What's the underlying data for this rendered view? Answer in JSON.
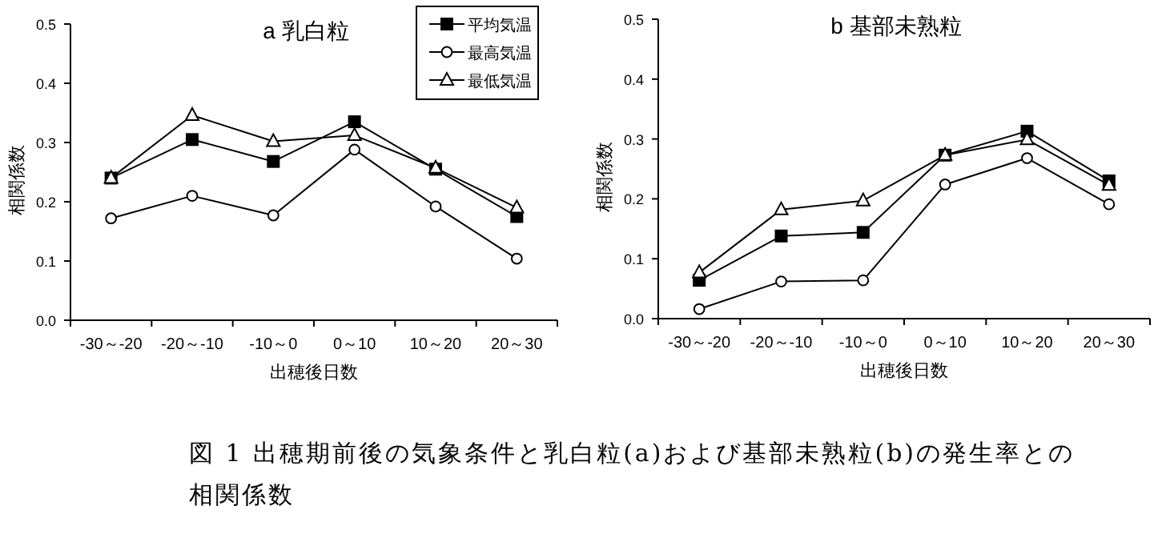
{
  "chart_data": [
    {
      "type": "line",
      "title": "a 乳白粒",
      "xlabel": "出穂後日数",
      "ylabel": "相関係数",
      "categories": [
        "-30～-20",
        "-20～-10",
        "-10～0",
        "0～10",
        "10～20",
        "20～30"
      ],
      "ylim": [
        0,
        0.5
      ],
      "yticks": [
        {
          "value": 0,
          "label": "0.0"
        },
        0.1,
        0.2,
        0.3,
        0.4,
        0.5
      ],
      "legend": "top right",
      "series": [
        {
          "name": "平均気温",
          "color": "#000000",
          "marker": "square",
          "values": [
            0.24,
            0.305,
            0.268,
            0.335,
            0.255,
            0.175
          ]
        },
        {
          "name": "最高気温",
          "color": "#000000",
          "marker": "circle",
          "values": [
            0.172,
            0.21,
            0.177,
            0.288,
            0.192,
            0.104
          ]
        },
        {
          "name": "最低気温",
          "color": "#000000",
          "marker": "triangle",
          "values": [
            0.24,
            0.346,
            0.302,
            0.312,
            0.257,
            0.19
          ]
        }
      ]
    },
    {
      "type": "line",
      "title": "b 基部未熟粒",
      "xlabel": "出穂後日数",
      "ylabel": "相関係数",
      "categories": [
        "-30～-20",
        "-20～-10",
        "-10～0",
        "0～10",
        "10～20",
        "20～30"
      ],
      "ylim": [
        0,
        0.5
      ],
      "yticks": [
        {
          "value": 0,
          "label": "0.0"
        },
        0.1,
        0.2,
        0.3,
        0.4,
        0.5
      ],
      "annotations": [
        "図 1 出穂期前後の気象条件と乳白粒(a)および基部未熟粒(b)の発生率との相関係数"
      ],
      "series": [
        {
          "color": "#000000",
          "marker": "square",
          "values": [
            0.064,
            0.138,
            0.144,
            0.273,
            0.313,
            0.23
          ]
        },
        {
          "color": "#000000",
          "marker": "circle",
          "values": [
            0.016,
            0.062,
            0.064,
            0.224,
            0.268,
            0.191
          ]
        },
        {
          "color": "#000000",
          "marker": "triangle",
          "values": [
            0.077,
            0.182,
            0.197,
            0.273,
            0.299,
            0.223
          ]
        }
      ]
    }
  ]
}
